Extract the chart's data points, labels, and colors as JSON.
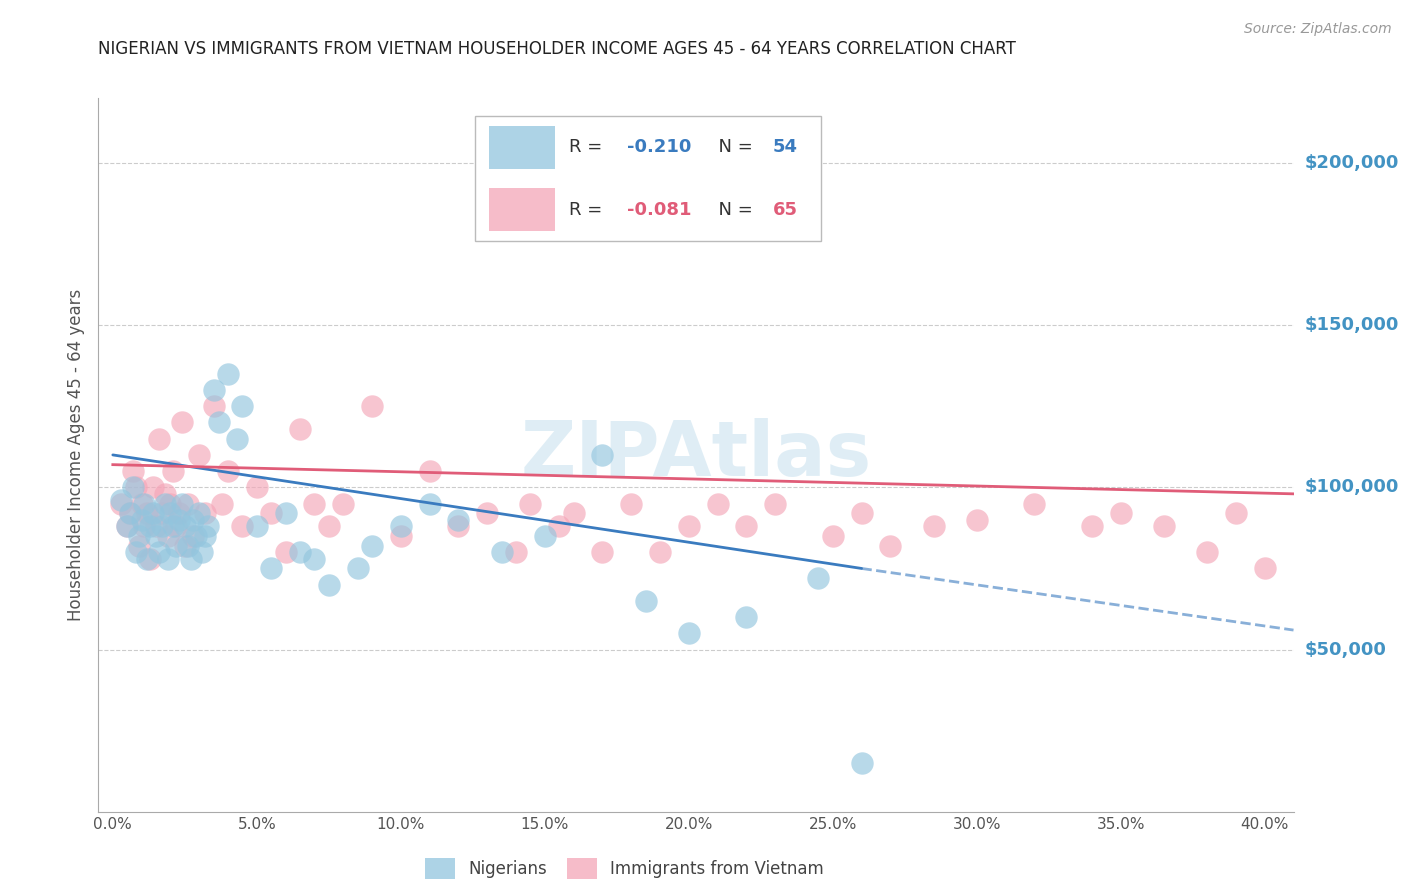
{
  "title": "NIGERIAN VS IMMIGRANTS FROM VIETNAM HOUSEHOLDER INCOME AGES 45 - 64 YEARS CORRELATION CHART",
  "source": "Source: ZipAtlas.com",
  "ylabel": "Householder Income Ages 45 - 64 years",
  "xlabel_ticks": [
    "0.0%",
    "5.0%",
    "10.0%",
    "15.0%",
    "20.0%",
    "25.0%",
    "30.0%",
    "35.0%",
    "40.0%"
  ],
  "xlabel_vals": [
    0.0,
    5.0,
    10.0,
    15.0,
    20.0,
    25.0,
    30.0,
    35.0,
    40.0
  ],
  "right_yticks": [
    50000,
    100000,
    150000,
    200000
  ],
  "right_ytick_labels": [
    "$50,000",
    "$100,000",
    "$150,000",
    "$200,000"
  ],
  "ylim": [
    0,
    220000
  ],
  "xlim": [
    -0.5,
    41.0
  ],
  "watermark": "ZIPAtlas",
  "blue_R": "-0.210",
  "blue_N": "54",
  "pink_R": "-0.081",
  "pink_N": "65",
  "blue_color": "#92c5de",
  "pink_color": "#f4a6b8",
  "blue_line_color": "#3a7bbf",
  "pink_line_color": "#e05c78",
  "right_label_color": "#4393c3",
  "legend_blue_R_color": "#3a7bbf",
  "legend_pink_R_color": "#e05c78",
  "nigerians_x": [
    0.3,
    0.5,
    0.6,
    0.7,
    0.8,
    0.9,
    1.0,
    1.1,
    1.2,
    1.3,
    1.4,
    1.5,
    1.6,
    1.7,
    1.8,
    1.9,
    2.0,
    2.1,
    2.2,
    2.3,
    2.4,
    2.5,
    2.6,
    2.7,
    2.8,
    2.9,
    3.0,
    3.1,
    3.2,
    3.3,
    3.5,
    3.7,
    4.0,
    4.3,
    4.5,
    5.0,
    5.5,
    6.0,
    6.5,
    7.0,
    7.5,
    8.5,
    9.0,
    10.0,
    11.0,
    12.0,
    13.5,
    15.0,
    17.0,
    18.5,
    20.0,
    22.0,
    24.5,
    26.0
  ],
  "nigerians_y": [
    96000,
    88000,
    92000,
    100000,
    80000,
    85000,
    90000,
    95000,
    78000,
    88000,
    92000,
    85000,
    80000,
    88000,
    95000,
    78000,
    92000,
    88000,
    82000,
    90000,
    95000,
    88000,
    82000,
    78000,
    90000,
    85000,
    92000,
    80000,
    85000,
    88000,
    130000,
    120000,
    135000,
    115000,
    125000,
    88000,
    75000,
    92000,
    80000,
    78000,
    70000,
    75000,
    82000,
    88000,
    95000,
    90000,
    80000,
    85000,
    110000,
    65000,
    55000,
    60000,
    72000,
    15000
  ],
  "vietnam_x": [
    0.3,
    0.5,
    0.6,
    0.7,
    0.8,
    0.9,
    1.0,
    1.1,
    1.2,
    1.3,
    1.4,
    1.5,
    1.6,
    1.7,
    1.8,
    1.9,
    2.0,
    2.1,
    2.2,
    2.3,
    2.4,
    2.5,
    2.6,
    2.8,
    3.0,
    3.2,
    3.5,
    3.8,
    4.0,
    4.5,
    5.0,
    5.5,
    6.0,
    6.5,
    7.0,
    7.5,
    8.0,
    9.0,
    10.0,
    11.0,
    12.0,
    13.0,
    14.0,
    14.5,
    15.5,
    16.0,
    17.0,
    18.0,
    19.0,
    20.0,
    21.0,
    22.0,
    23.0,
    25.0,
    26.0,
    27.0,
    28.5,
    30.0,
    32.0,
    34.0,
    35.0,
    36.5,
    38.0,
    39.0,
    40.0
  ],
  "vietnam_y": [
    95000,
    88000,
    92000,
    105000,
    100000,
    82000,
    95000,
    88000,
    92000,
    78000,
    100000,
    88000,
    115000,
    92000,
    98000,
    85000,
    95000,
    105000,
    88000,
    92000,
    120000,
    82000,
    95000,
    85000,
    110000,
    92000,
    125000,
    95000,
    105000,
    88000,
    100000,
    92000,
    80000,
    118000,
    95000,
    88000,
    95000,
    125000,
    85000,
    105000,
    88000,
    92000,
    80000,
    95000,
    88000,
    92000,
    80000,
    95000,
    80000,
    88000,
    95000,
    88000,
    95000,
    85000,
    92000,
    82000,
    88000,
    90000,
    95000,
    88000,
    92000,
    88000,
    80000,
    92000,
    75000
  ],
  "blue_line_x0": 0.0,
  "blue_line_x1": 26.0,
  "blue_line_y0": 110000,
  "blue_line_y1": 75000,
  "blue_dash_x0": 26.0,
  "blue_dash_x1": 41.0,
  "blue_dash_y0": 75000,
  "blue_dash_y1": 56000,
  "pink_line_x0": 0.0,
  "pink_line_x1": 41.0,
  "pink_line_y0": 107000,
  "pink_line_y1": 98000
}
